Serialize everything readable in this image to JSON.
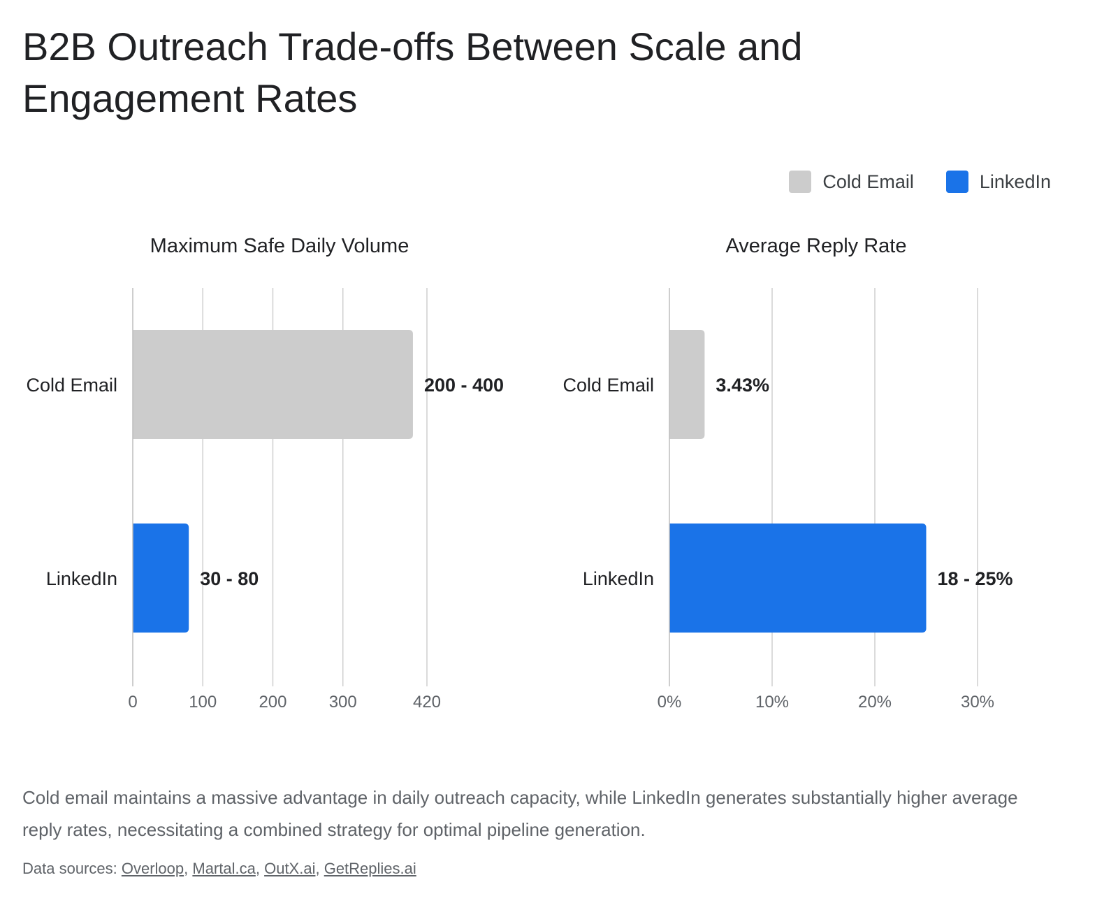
{
  "title": "B2B Outreach Trade-offs Between Scale and Engagement Rates",
  "legend": [
    {
      "label": "Cold Email",
      "color": "#cccccc"
    },
    {
      "label": "LinkedIn",
      "color": "#1a73e8"
    }
  ],
  "chart_data": [
    {
      "type": "bar",
      "orientation": "horizontal",
      "title": "Maximum Safe Daily Volume",
      "categories": [
        "Cold Email",
        "LinkedIn"
      ],
      "ranges": [
        [
          200,
          400
        ],
        [
          30,
          80
        ]
      ],
      "values": [
        400,
        80
      ],
      "data_labels": [
        "200 - 400",
        "30 - 80"
      ],
      "colors": [
        "#cccccc",
        "#1a73e8"
      ],
      "xlim": [
        0,
        420
      ],
      "xticks": [
        0,
        100,
        200,
        300,
        420
      ],
      "xtick_labels": [
        "0",
        "100",
        "200",
        "300",
        "420"
      ],
      "grid": true
    },
    {
      "type": "bar",
      "orientation": "horizontal",
      "title": "Average Reply Rate",
      "categories": [
        "Cold Email",
        "LinkedIn"
      ],
      "ranges": [
        [
          3.43,
          3.43
        ],
        [
          18,
          25
        ]
      ],
      "values": [
        3.43,
        25
      ],
      "data_labels": [
        "3.43%",
        "18 - 25%"
      ],
      "colors": [
        "#cccccc",
        "#1a73e8"
      ],
      "xlim": [
        0,
        30
      ],
      "xticks": [
        0,
        10,
        20,
        30
      ],
      "xtick_labels": [
        "0%",
        "10%",
        "20%",
        "30%"
      ],
      "grid": true
    }
  ],
  "takeaway": "Cold email maintains a massive advantage in daily outreach capacity, while LinkedIn generates substantially higher average reply rates, necessitating a combined strategy for optimal pipeline generation.",
  "sources": {
    "label": "Data sources:",
    "links": [
      "Overloop",
      "Martal.ca",
      "OutX.ai",
      "GetReplies.ai"
    ]
  }
}
